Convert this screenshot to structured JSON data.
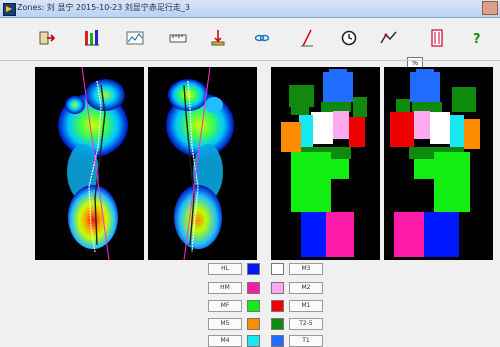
{
  "window": {
    "title": "Zones: 刘 显宁 2015-10-23 刘显宁赤足行走_3"
  },
  "toolbar": {
    "buttons": [
      {
        "name": "exit",
        "icon": "exit-icon"
      },
      {
        "name": "walk-sequence",
        "icon": "walk-icon"
      },
      {
        "name": "pressure-graph",
        "icon": "graph-icon"
      },
      {
        "name": "ruler",
        "icon": "ruler-icon"
      },
      {
        "name": "pressure-dist",
        "icon": "pressure-icon"
      },
      {
        "name": "link",
        "icon": "link-icon"
      },
      {
        "name": "force-line",
        "icon": "force-line-icon"
      },
      {
        "name": "timer",
        "icon": "clock-icon"
      },
      {
        "name": "balance",
        "icon": "balance-icon"
      },
      {
        "name": "help",
        "icon": "help-icon"
      }
    ],
    "percent_label": "%"
  },
  "legend": {
    "colors": {
      "HL": "#0018ff",
      "HM": "#ff1aa8",
      "MF": "#12ee12",
      "M5": "#ff8c00",
      "M4": "#18e8f0",
      "M3": "#ffffff",
      "M2": "#ffaaee",
      "M1": "#ee0000",
      "T2-5": "#0f8a0f",
      "T1": "#1f6cff"
    },
    "left": [
      "HL",
      "HM",
      "MF",
      "M5",
      "M4"
    ],
    "right": [
      "M3",
      "M2",
      "M1",
      "T2-5",
      "T1"
    ]
  }
}
